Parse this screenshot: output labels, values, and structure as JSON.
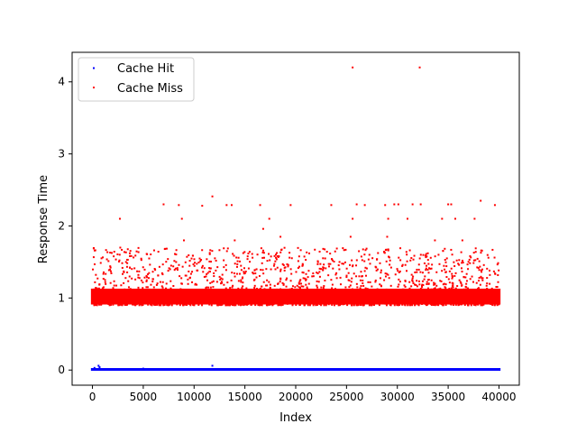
{
  "chart_data": {
    "type": "scatter",
    "xlabel": "Index",
    "ylabel": "Response Time",
    "xlim": [
      -2000,
      42000
    ],
    "ylim": [
      -0.21,
      4.41
    ],
    "xticks": [
      0,
      5000,
      10000,
      15000,
      20000,
      25000,
      30000,
      35000,
      40000
    ],
    "xtick_labels": [
      "0",
      "5000",
      "10000",
      "15000",
      "20000",
      "25000",
      "30000",
      "35000",
      "40000"
    ],
    "yticks": [
      0,
      1,
      2,
      3,
      4
    ],
    "ytick_labels": [
      "0",
      "1",
      "2",
      "3",
      "4"
    ],
    "grid": false,
    "legend_position": "top-left",
    "series": [
      {
        "name": "Cache Hit",
        "color": "#0000ff",
        "description": "about 40,000 points clustered near 0 (≈0.00–0.02)",
        "points": [
          [
            200,
            0.03
          ],
          [
            600,
            0.06
          ],
          [
            700,
            0.04
          ],
          [
            11800,
            0.06
          ],
          [
            5000,
            0.02
          ],
          [
            15000,
            0.01
          ],
          [
            20000,
            0.01
          ],
          [
            25000,
            0.01
          ],
          [
            30000,
            0.01
          ],
          [
            35000,
            0.01
          ],
          [
            40000,
            0.01
          ]
        ]
      },
      {
        "name": "Cache Miss",
        "color": "#ff0000",
        "description": "about 40,000 points in a dense band ≈0.9–1.2 with scattered outliers up to ≈2.4 and two points at ≈4.2",
        "points": [
          [
            25600,
            4.2
          ],
          [
            32200,
            4.2
          ],
          [
            11800,
            2.41
          ],
          [
            38200,
            2.35
          ],
          [
            7000,
            2.3
          ],
          [
            8500,
            2.29
          ],
          [
            10800,
            2.28
          ],
          [
            13200,
            2.29
          ],
          [
            13700,
            2.29
          ],
          [
            16500,
            2.29
          ],
          [
            19500,
            2.29
          ],
          [
            23500,
            2.29
          ],
          [
            26000,
            2.3
          ],
          [
            26800,
            2.29
          ],
          [
            28800,
            2.29
          ],
          [
            29700,
            2.3
          ],
          [
            30100,
            2.3
          ],
          [
            31500,
            2.3
          ],
          [
            32300,
            2.3
          ],
          [
            35000,
            2.3
          ],
          [
            35300,
            2.3
          ],
          [
            39600,
            2.29
          ],
          [
            2700,
            2.1
          ],
          [
            8800,
            2.1
          ],
          [
            17400,
            2.1
          ],
          [
            25600,
            2.1
          ],
          [
            29100,
            2.1
          ],
          [
            31000,
            2.1
          ],
          [
            34400,
            2.1
          ],
          [
            35700,
            2.1
          ],
          [
            37600,
            2.1
          ],
          [
            16800,
            1.96
          ],
          [
            9000,
            1.8
          ],
          [
            14000,
            1.8
          ],
          [
            18500,
            1.85
          ],
          [
            25400,
            1.85
          ],
          [
            29000,
            1.85
          ],
          [
            33700,
            1.8
          ],
          [
            36400,
            1.8
          ]
        ]
      }
    ]
  }
}
